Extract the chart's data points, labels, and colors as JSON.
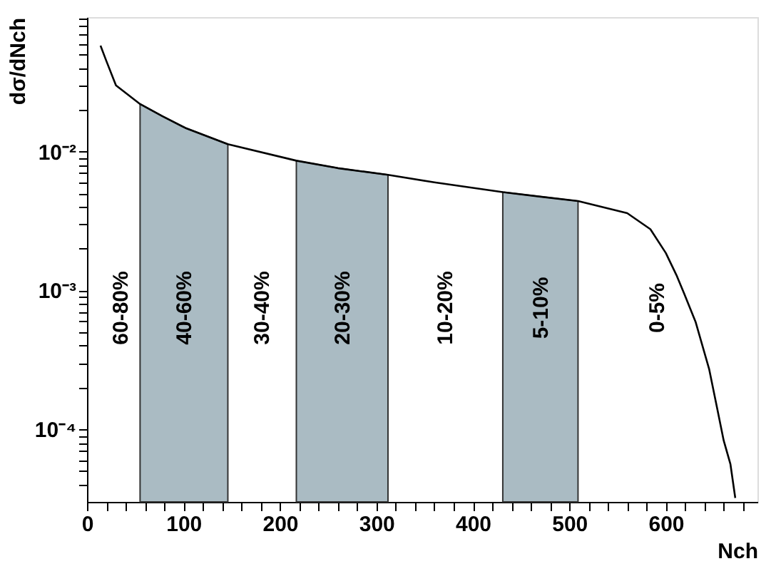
{
  "chart_data": {
    "type": "line",
    "xlabel": "Nch",
    "ylabel": "dσ/dNch",
    "x": [
      14,
      20,
      30,
      55,
      78,
      102,
      146,
      217,
      260,
      312,
      360,
      431,
      509,
      560,
      584,
      600,
      611,
      619,
      631,
      645,
      653,
      660,
      667,
      672
    ],
    "series": [
      {
        "color": "#000000",
        "values": [
          0.058,
          0.045,
          0.03,
          0.022,
          0.018,
          0.0148,
          0.0113,
          0.0086,
          0.0076,
          0.0068,
          0.006,
          0.0051,
          0.0044,
          0.0036,
          0.00276,
          0.00186,
          0.00129,
          0.00095,
          0.00059,
          0.00027,
          0.000144,
          8.3e-05,
          5.6e-05,
          3.2e-05
        ]
      }
    ],
    "log": "y",
    "grid": false,
    "marker": "none",
    "line_style": "solid",
    "xlim": [
      0,
      695
    ],
    "ylim": [
      3e-05,
      0.093
    ],
    "xticks": [
      0,
      {
        "value": 20,
        "label": null
      },
      {
        "value": 40,
        "label": null
      },
      {
        "value": 60,
        "label": null
      },
      {
        "value": 80,
        "label": null
      },
      100,
      {
        "value": 120,
        "label": null
      },
      {
        "value": 140,
        "label": null
      },
      {
        "value": 160,
        "label": null
      },
      {
        "value": 180,
        "label": null
      },
      200,
      {
        "value": 220,
        "label": null
      },
      {
        "value": 240,
        "label": null
      },
      {
        "value": 260,
        "label": null
      },
      {
        "value": 280,
        "label": null
      },
      300,
      {
        "value": 320,
        "label": null
      },
      {
        "value": 340,
        "label": null
      },
      {
        "value": 360,
        "label": null
      },
      {
        "value": 380,
        "label": null
      },
      400,
      {
        "value": 420,
        "label": null
      },
      {
        "value": 440,
        "label": null
      },
      {
        "value": 460,
        "label": null
      },
      {
        "value": 480,
        "label": null
      },
      500,
      {
        "value": 520,
        "label": null
      },
      {
        "value": 540,
        "label": null
      },
      {
        "value": 560,
        "label": null
      },
      {
        "value": 580,
        "label": null
      },
      600,
      {
        "value": 620,
        "label": null
      },
      {
        "value": 640,
        "label": null
      },
      {
        "value": 660,
        "label": null
      },
      {
        "value": 680,
        "label": null
      }
    ],
    "yticks": [
      {
        "value": 4e-05,
        "label": null
      },
      {
        "value": 5e-05,
        "label": null
      },
      {
        "value": 6e-05,
        "label": null
      },
      {
        "value": 7e-05,
        "label": null
      },
      {
        "value": 8e-05,
        "label": null
      },
      {
        "value": 9e-05,
        "label": null
      },
      {
        "value": 0.0001,
        "label": "10⁻⁴"
      },
      {
        "value": 0.0002,
        "label": null
      },
      {
        "value": 0.0003,
        "label": null
      },
      {
        "value": 0.0004,
        "label": null
      },
      {
        "value": 0.0005,
        "label": null
      },
      {
        "value": 0.0006,
        "label": null
      },
      {
        "value": 0.0007,
        "label": null
      },
      {
        "value": 0.0008,
        "label": null
      },
      {
        "value": 0.0009,
        "label": null
      },
      {
        "value": 0.001,
        "label": "10⁻³"
      },
      {
        "value": 0.002,
        "label": null
      },
      {
        "value": 0.003,
        "label": null
      },
      {
        "value": 0.004,
        "label": null
      },
      {
        "value": 0.005,
        "label": null
      },
      {
        "value": 0.006,
        "label": null
      },
      {
        "value": 0.007,
        "label": null
      },
      {
        "value": 0.008,
        "label": null
      },
      {
        "value": 0.009,
        "label": null
      },
      {
        "value": 0.01,
        "label": "10⁻²"
      },
      {
        "value": 0.02,
        "label": null
      },
      {
        "value": 0.03,
        "label": null
      },
      {
        "value": 0.04,
        "label": null
      },
      {
        "value": 0.05,
        "label": null
      },
      {
        "value": 0.06,
        "label": null
      },
      {
        "value": 0.07,
        "label": null
      },
      {
        "value": 0.08,
        "label": null
      },
      {
        "value": 0.09,
        "label": null
      }
    ],
    "bands": [
      {
        "axis": "x",
        "from": 55,
        "to": 146,
        "label": "40-60%",
        "color": "#aabbc3"
      },
      {
        "axis": "x",
        "from": 217,
        "to": 312,
        "label": "20-30%",
        "color": "#aabbc3"
      },
      {
        "axis": "x",
        "from": 431,
        "to": 509,
        "label": "5-10%",
        "color": "#aabbc3"
      }
    ],
    "annotations": [
      "60-80%",
      "30-40%",
      "10-20%",
      "0-5%"
    ]
  }
}
